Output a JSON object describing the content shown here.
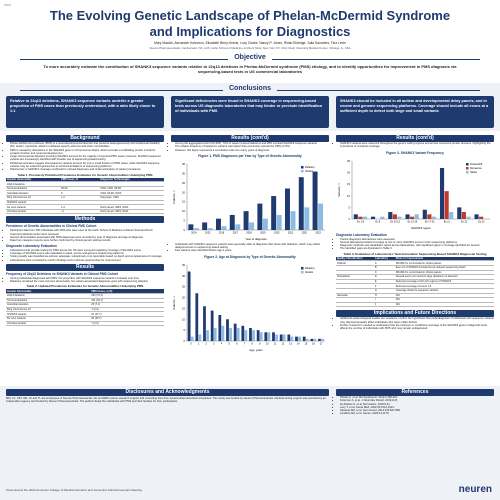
{
  "header": {
    "badge": "P803",
    "title_line1": "The Evolving Genetic Landscape of Phelan-McDermid Syndrome",
    "title_line2": "and Implications for Diagnostics",
    "authors": "Mary Mackie, Alexander Kolevzon, Elizabeth Berry-Kravis, Lucy Clarke, Nancy P. Jones, Rhian Eldridge, Julia Saunders, Tina Levin",
    "affiliations": "Neuren Pharmaceuticals, Camberwell, VIC, AUS; Icahn School of Medicine at Mount Sinai, New York, NY, USA; Rush University Medical Center, Chicago, IL, USA"
  },
  "objective": {
    "heading": "Objective",
    "text": "To more accurately estimate the contribution of SHANK3 sequence variants relative to 22q13 deletions in Phelan-McDermid syndrome (PMS) etiology, and to identify opportunities for improvement in PMS diagnosis via sequencing-based tests in US commercial laboratories"
  },
  "conclusions": {
    "heading": "Conclusions",
    "boxes": [
      "Relative to 22q13 deletions, SHANK3 sequence variants underlie a greater proportion of PMS cases than previously understood, with a ratio likely closer to 1:1",
      "Significant deficiencies were found in SHANK3 coverage in sequencing-based tests across US diagnostic laboratories that may hinder or preclude identification of individuals with PMS",
      "SHANK3 should be included in all autism and developmental delay panels, and in exome and genome sequencing platforms. Coverage should include all exons at a sufficient depth to detect both large and small variants"
    ]
  },
  "background": {
    "heading": "Background",
    "bullets": [
      "Phelan-McDermid syndrome (PMS) is a neurodevelopmental disorder that presents heterogeneously with intellectual disability (ID), autism, hypotonia, absent or delayed speech, seizures and other comorbidities",
      "PMS is caused by disruptions in the SHANK3 gene on chromosome 22q13, which encodes a scaffolding protein crucial for synaptic function and neuronal development",
      "Large chromosomal deletions involving SHANK3 account for the majority of reported PMS cases; however, SHANK3 sequence variants are increasingly identified with broader use of sequencing-based testing",
      "Published estimates suggest that sequence variants account for only a small fraction of PMS cases, while SHANK3 sequence variants may be underrecognized due to technical limitations of sequencing platforms",
      "Deficiencies in SHANK3 coverage could lead to missed diagnoses and under-estimation of variant prevalence"
    ]
  },
  "table1": {
    "caption": "Table 1. Previously Published Prevalence Estimates for Genetic Abnormalities Underlying PMS",
    "columns": [
      "Genetic Abnormality",
      "PMS Cases, %",
      "Diagnostic Technologies"
    ],
    "rows": [
      [
        "22q13 deletions",
        "",
        ""
      ],
      [
        "Terminal deletions",
        "80-90",
        "CMA, FISH, MLPA"
      ],
      [
        "Interstitial deletions",
        "9",
        "CMA, MLPA, WGS"
      ],
      [
        "Ring chromosome 22",
        "1-2",
        "Karyotype, CMA"
      ],
      [
        "SHANK3 variants",
        "",
        ""
      ],
      [
        "De novo variants",
        "1-3",
        "NGS panels, WES, WGS"
      ],
      [
        "Inherited variants",
        "<1",
        "NGS panels, WES, WGS"
      ]
    ]
  },
  "methods": {
    "heading": "Methods",
    "subheading1": "Prevalence of Genetic Abnormalities in Clinical PMS Cohort",
    "bullets1": [
      "Participant data from 350 individuals with PMS who were seen at the Icahn School of Medicine at Mount Sinai and Rush University Medical Center were reviewed",
      "Genetic abnormalities associated with PMS diagnoses were recorded by year of diagnosis and age at diagnosis",
      "Data from caregiver reports were further confirmed by clinical genetic testing records"
    ],
    "subheading2": "Diagnostic Laboratory Evaluation",
    "bullets2": [
      "Laboratories that provide testing for PMS across the US were surveyed regarding coverage of SHANK3 exons",
      "Coverage of SHANK3 exons was evaluated in panel, exome and genome sequencing platforms",
      "Testing quality was classified as optimal, adequate, suboptimal or not reportable based on depth and completeness of coverage",
      "Laboratories were contacted to confirm findings and to discuss opportunities for improvement"
    ]
  },
  "results": {
    "heading": "Results",
    "subheading": "Frequency of 22q13 Deletions vs SHANK3 Variants in Clinical PMS Cohort",
    "bullets": [
      "Among individuals diagnosed with PMS, the proportion with SHANK3 sequence variants increased over time",
      "Deletions remained the most common abnormality, but variant-associated diagnoses grew with sequencing adoption"
    ]
  },
  "table2": {
    "caption": "Table 2. Updated Prevalence Estimates for Genetic Abnormalities Underlying PMS",
    "columns": [
      "Genetic Abnormality",
      "PMS Cases, n (%)"
    ],
    "rows": [
      [
        "22q13 deletions",
        "253 (72.3)"
      ],
      [
        "Terminal deletions",
        "221 (63.1)"
      ],
      [
        "Interstitial deletions",
        "25 (7.1)"
      ],
      [
        "Ring chromosome 22",
        "7 (2.0)"
      ],
      [
        "SHANK3 variants",
        "97 (27.7)"
      ],
      [
        "De novo variants",
        "90 (25.7)"
      ],
      [
        "Inherited variants",
        "7 (2.0)"
      ]
    ]
  },
  "results_cont1": {
    "heading": "Results (cont'd)",
    "bullets": [
      "Among the aggregated cohort (N=350), 72% of cases involved deletions and 28% involved SHANK3 sequence variants",
      "The relative frequency of sequence variants was higher than previously reported for PMS (1-3%)",
      "However, this figure represents a cumulative total over many years of diagnosis"
    ],
    "bullets2": [
      "Individuals with SHANK3 sequence variants were generally older at diagnosis than those with deletions, which may reflect delayed access to sequencing-based testing",
      "Few variants were identified before age 2 years"
    ]
  },
  "figure1": {
    "type": "bar",
    "title": "Figure 1. PMS Diagnoses per Year by Type of Genetic Abnormality",
    "categories": [
      "2014",
      "2015",
      "2016",
      "2017",
      "2018",
      "2019",
      "2020",
      "2021",
      "2022",
      "2023"
    ],
    "series": [
      {
        "name": "Deletion",
        "color": "#1f3a6e",
        "values": [
          3,
          4,
          6,
          8,
          10,
          14,
          18,
          22,
          28,
          31
        ]
      },
      {
        "name": "Variant",
        "color": "#8cbbe3",
        "values": [
          1,
          1,
          2,
          3,
          4,
          6,
          8,
          10,
          12,
          14
        ]
      }
    ],
    "ylim": [
      0,
      35
    ],
    "yticks": [
      0,
      5,
      10,
      15,
      20,
      25,
      30,
      35
    ],
    "x_label": "Year of diagnosis",
    "y_label": "Patients, n",
    "legend": "upper right",
    "grid": false
  },
  "figure2": {
    "type": "bar",
    "title": "Figure 2. Age at Diagnosis by Type of Genetic Abnormality",
    "categories": [
      "0",
      "1",
      "2",
      "3",
      "4",
      "5",
      "6",
      "7",
      "8",
      "9",
      "10",
      "11",
      "12",
      "13",
      "14",
      "15",
      "16",
      "17"
    ],
    "series": [
      {
        "name": "Deletion",
        "color": "#1f3a6e",
        "values": [
          32,
          22,
          16,
          14,
          12,
          10,
          8,
          7,
          6,
          5,
          4,
          4,
          3,
          3,
          2,
          2,
          1,
          1
        ]
      },
      {
        "name": "Variant",
        "color": "#8cbbe3",
        "values": [
          2,
          3,
          5,
          6,
          7,
          6,
          6,
          5,
          5,
          4,
          4,
          3,
          3,
          2,
          2,
          1,
          1,
          1
        ]
      }
    ],
    "ylim": [
      0,
      35
    ],
    "yticks": [
      0,
      5,
      10,
      15,
      20,
      25,
      30,
      35
    ],
    "x_label": "Age, years",
    "y_label": "Patients, n",
    "legend": "upper right",
    "grid": false
  },
  "results_cont2": {
    "heading": "Results (cont'd)",
    "bullets": [
      "SHANK3 variants were observed throughout the gene's coding regions and across conserved protein domains, highlighting the importance of complete coverage"
    ],
    "subheading": "Diagnostic Laboratory Evaluation",
    "bullets2": [
      "Twelve diagnostic laboratories were assessed",
      "Several laboratories lacked coverage of one or more SHANK3 exons in their sequencing platforms",
      "Diagnostic methods and capabilities varied across laboratories, with significant gaps in coverage identified for several",
      "The identified gaps are illustrated in Table 3"
    ]
  },
  "figure3": {
    "type": "bar",
    "title": "Figure 3. SHANK3 Variant Frequency",
    "categories": [
      "Ex 1-8",
      "Ex 9",
      "Ex 10-12",
      "Ex 13-16",
      "Ex 17-20",
      "Ex 21",
      "Ex 22",
      "Ex 23"
    ],
    "series": [
      {
        "name": "Frameshift",
        "color": "#1f3a6e",
        "values": [
          2,
          1,
          3,
          2,
          4,
          22,
          5,
          2
        ]
      },
      {
        "name": "Nonsense",
        "color": "#c0392b",
        "values": [
          1,
          0,
          2,
          1,
          2,
          12,
          3,
          1
        ]
      },
      {
        "name": "Splice",
        "color": "#8cbbe3",
        "values": [
          1,
          1,
          1,
          2,
          1,
          3,
          1,
          0
        ]
      }
    ],
    "ylim": [
      0,
      25
    ],
    "yticks": [
      0,
      5,
      10,
      15,
      20,
      25
    ],
    "x_label": "SHANK3 region",
    "y_label": "Variants, n",
    "legend": "upper right",
    "grid": false
  },
  "table3": {
    "caption": "Table 3. Evaluation of Laboratories' Next-Generation Sequencing-Based SHANK3 Diagnostic Testing",
    "columns": [
      "Quality Classification",
      "Laboratory",
      "Notes for Improvement"
    ],
    "rows": [
      [
        "Optimal",
        "A",
        "SHANK3 is not included in clinical panels"
      ],
      [
        "",
        "B",
        "Exon 21 of SHANK3 included but at reduced sequencing depth"
      ],
      [
        "",
        "C",
        "SHANK3 is not included in clinical panels"
      ],
      [
        "Suboptimal",
        "D",
        "Several exons not covered; large deletions not detected"
      ],
      [
        "",
        "E",
        "Reduced coverage of GC-rich regions of SHANK3"
      ],
      [
        "",
        "F",
        "Reduced coverage of exons 1-8"
      ],
      [
        "",
        "G",
        "Coverage limited to sequence variants"
      ],
      [
        "Adequate",
        "H",
        "N/A"
      ],
      [
        "",
        "I",
        "N/A"
      ],
      [
        "",
        "J",
        "N/A"
      ]
    ]
  },
  "implications": {
    "heading": "Implications and Future Directions",
    "bullets": [
      "Additional epidemiological studies are needed to confirm the hypothesis that underdiagnosis of individuals with sequence variants may disproportionately affect individuals who have milder deficits",
      "Further research is needed to understand how the inclusion or insufficient coverage of the SHANK3 gene in diagnostic tests affects the number of individuals with PMS who may remain undiagnosed"
    ]
  },
  "footer": {
    "disclosures_heading": "Disclosures and Acknowledgments",
    "disclosures": "MM, LC, NPJ, RE, JS and TL are employees of Neuren Pharmaceuticals. AK and EBK receive research support and consulting fees from several pharmaceutical companies. This study was funded by Neuren Pharmaceuticals. Medical writing support was provided by an independent agency and funded by Neuren Pharmaceuticals. The authors thank the individuals with PMS and their families for their participation.",
    "references_heading": "References",
    "references": [
      "Phelan K, et al. Mol Syndromol. 2012;2:186-201.",
      "Kolevzon A, et al. J Neurodev Disord. 2019;11:8.",
      "De Rubeis S, et al. Mol Autism. 2018;9:31.",
      "Levy T, et al. Genet Med. 2022;24:1512-1521.",
      "Sarasua SM, et al. Hum Genet. 2014;133:847-859.",
      "Landlust AM, et al. Genes. 2023;14:1179."
    ],
    "presented": "Presented at the 2024 American College of Medical Genetics and Genomics Clinical Genetics Meeting",
    "logo": "neuren"
  }
}
